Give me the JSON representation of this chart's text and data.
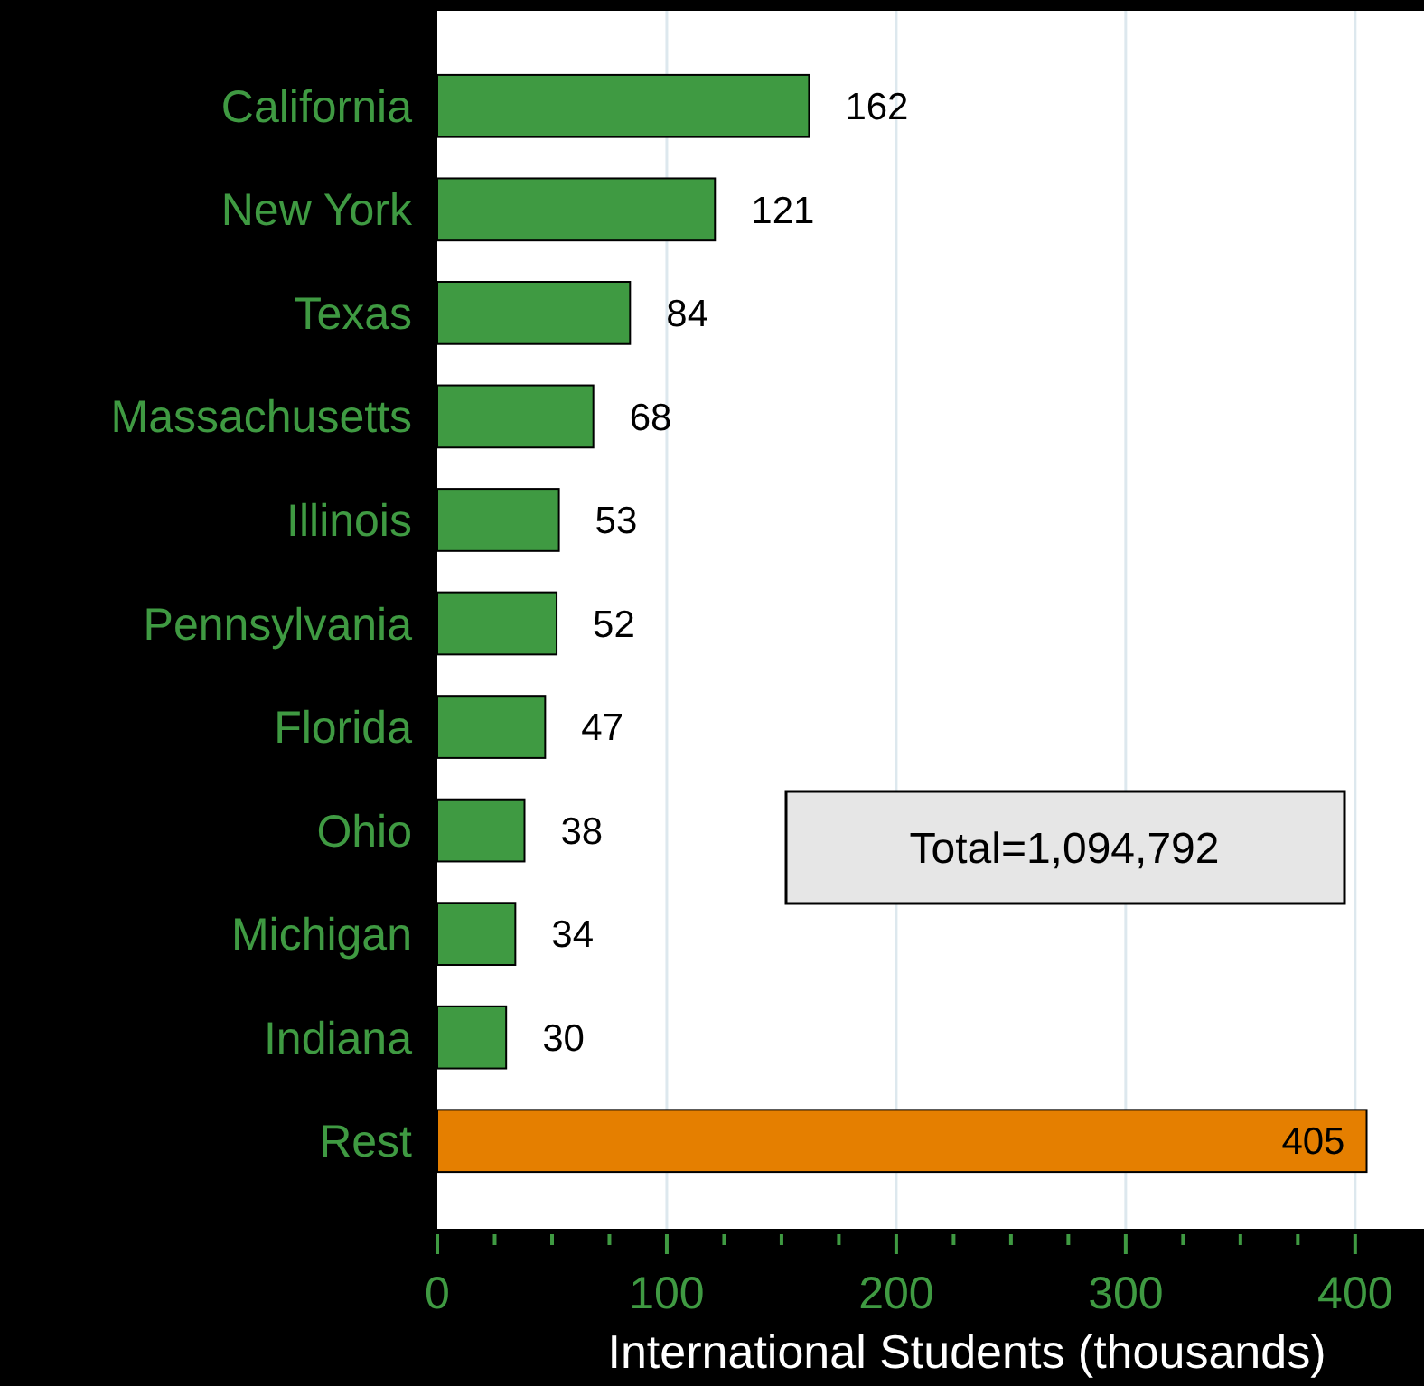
{
  "chart_data": {
    "type": "bar",
    "orientation": "horizontal",
    "xlabel": "International Students (thousands)",
    "categories": [
      "California",
      "New York",
      "Texas",
      "Massachusetts",
      "Illinois",
      "Pennsylvania",
      "Florida",
      "Ohio",
      "Michigan",
      "Indiana",
      "Rest"
    ],
    "values": [
      162,
      121,
      84,
      68,
      53,
      52,
      47,
      38,
      34,
      30,
      405
    ],
    "colors": [
      "#3f9a42",
      "#3f9a42",
      "#3f9a42",
      "#3f9a42",
      "#3f9a42",
      "#3f9a42",
      "#3f9a42",
      "#3f9a42",
      "#3f9a42",
      "#3f9a42",
      "#e57f00"
    ],
    "xlim": [
      0,
      430
    ],
    "xticks": [
      0,
      {
        "value": 25,
        "label": null
      },
      {
        "value": 50,
        "label": null
      },
      {
        "value": 75,
        "label": null
      },
      100,
      {
        "value": 125,
        "label": null
      },
      {
        "value": 150,
        "label": null
      },
      {
        "value": 175,
        "label": null
      },
      200,
      {
        "value": 225,
        "label": null
      },
      {
        "value": 250,
        "label": null
      },
      {
        "value": 275,
        "label": null
      },
      300,
      {
        "value": 325,
        "label": null
      },
      {
        "value": 350,
        "label": null
      },
      {
        "value": 375,
        "label": null
      },
      400
    ],
    "grid": "x",
    "data_labels": true,
    "annotations": [
      "Total=1,094,792"
    ]
  }
}
